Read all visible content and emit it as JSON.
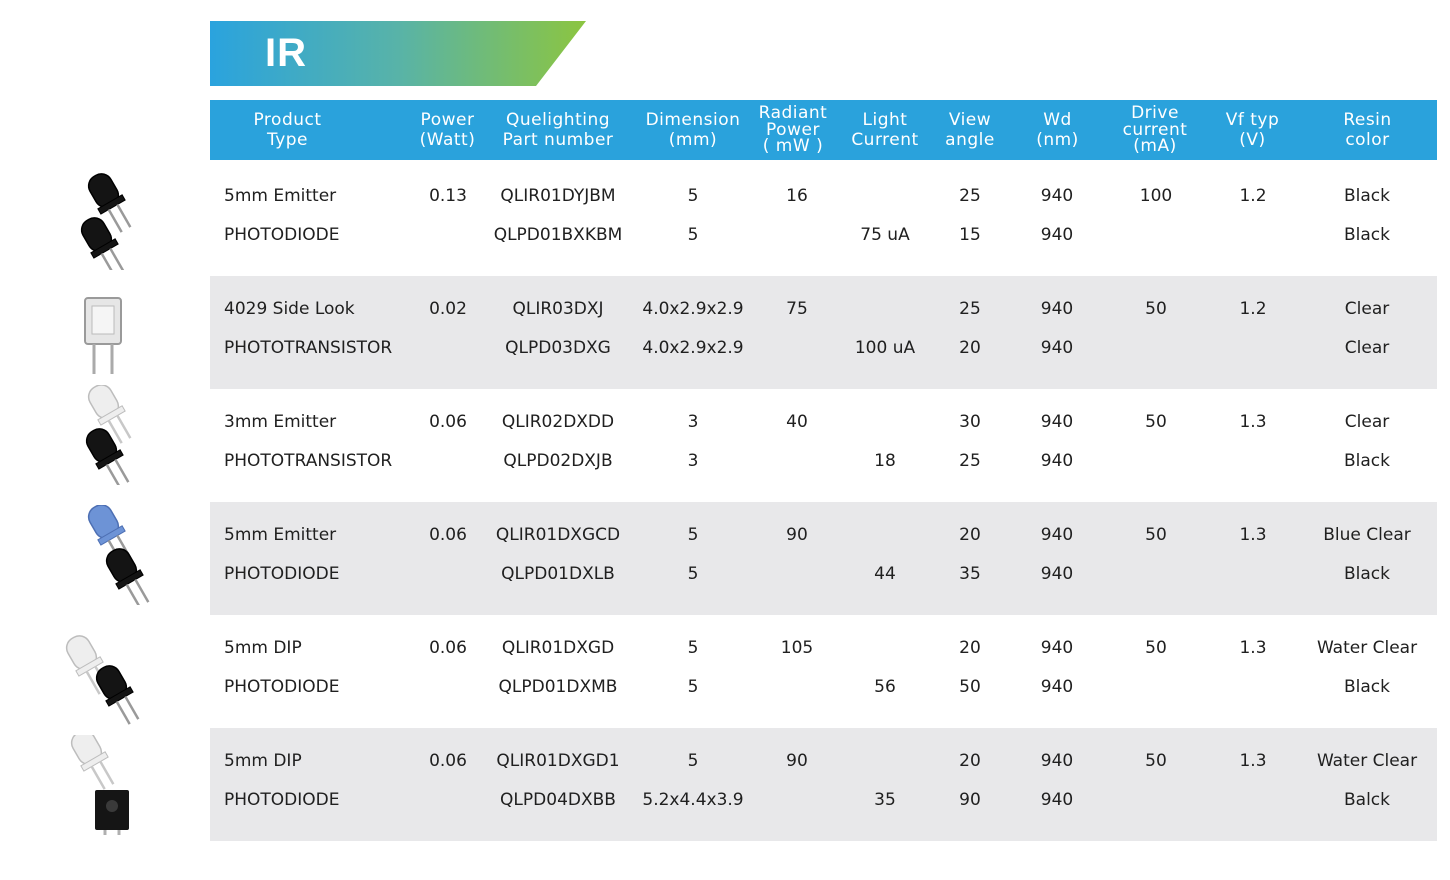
{
  "banner": {
    "title": "IR"
  },
  "headers": [
    "Product\nType",
    "Power\n(Watt)",
    "Quelighting\nPart number",
    "Dimension\n(mm)",
    "Radiant\nPower\n( mW )",
    "Light\nCurrent",
    "View\nangle",
    "Wd\n(nm)",
    "Drive\ncurrent\n(mA)",
    "Vf typ\n(V)",
    "Resin\ncolor"
  ],
  "rows": [
    {
      "type1": "5mm Emitter",
      "type2": "PHOTODIODE",
      "power": "0.13",
      "part1": "QLIR01DYJBM",
      "part2": "QLPD01BXKBM",
      "dim1": "5",
      "dim2": "5",
      "radiant": "16",
      "light": "75 uA",
      "view1": "25",
      "view2": "15",
      "wd1": "940",
      "wd2": "940",
      "drive": "100",
      "vf": "1.2",
      "resin1": "Black",
      "resin2": "Black"
    },
    {
      "type1": "4029 Side Look",
      "type2": "PHOTOTRANSISTOR",
      "power": "0.02",
      "part1": "QLIR03DXJ",
      "part2": "QLPD03DXG",
      "dim1": "4.0x2.9x2.9",
      "dim2": "4.0x2.9x2.9",
      "radiant": "75",
      "light": "100 uA",
      "view1": "25",
      "view2": "20",
      "wd1": "940",
      "wd2": "940",
      "drive": "50",
      "vf": "1.2",
      "resin1": "Clear",
      "resin2": "Clear"
    },
    {
      "type1": "3mm Emitter",
      "type2": "PHOTOTRANSISTOR",
      "power": "0.06",
      "part1": "QLIR02DXDD",
      "part2": "QLPD02DXJB",
      "dim1": "3",
      "dim2": "3",
      "radiant": "40",
      "light": "18",
      "view1": "30",
      "view2": "25",
      "wd1": "940",
      "wd2": "940",
      "drive": "50",
      "vf": "1.3",
      "resin1": "Clear",
      "resin2": "Black"
    },
    {
      "type1": "5mm Emitter",
      "type2": "PHOTODIODE",
      "power": "0.06",
      "part1": "QLIR01DXGCD",
      "part2": "QLPD01DXLB",
      "dim1": "5",
      "dim2": "5",
      "radiant": "90",
      "light": "44",
      "view1": "20",
      "view2": "35",
      "wd1": "940",
      "wd2": "940",
      "drive": "50",
      "vf": "1.3",
      "resin1": "Blue Clear",
      "resin2": "Black"
    },
    {
      "type1": "5mm DIP",
      "type2": "PHOTODIODE",
      "power": "0.06",
      "part1": "QLIR01DXGD",
      "part2": "QLPD01DXMB",
      "dim1": "5",
      "dim2": "5",
      "radiant": "105",
      "light": "56",
      "view1": "20",
      "view2": "50",
      "wd1": "940",
      "wd2": "940",
      "drive": "50",
      "vf": "1.3",
      "resin1": "Water Clear",
      "resin2": "Black"
    },
    {
      "type1": "5mm DIP",
      "type2": "PHOTODIODE",
      "power": "0.06",
      "part1": "QLIR01DXGD1",
      "part2": "QLPD04DXBB",
      "dim1": "5",
      "dim2": "5.2x4.4x3.9",
      "radiant": "90",
      "light": "35",
      "view1": "20",
      "view2": "90",
      "wd1": "940",
      "wd2": "940",
      "drive": "50",
      "vf": "1.3",
      "resin1": "Water Clear",
      "resin2": "Balck"
    }
  ]
}
